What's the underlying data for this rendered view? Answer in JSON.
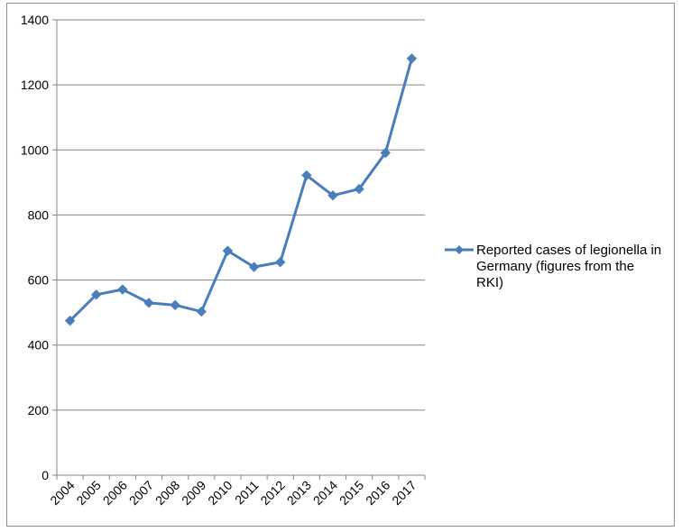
{
  "chart_data": {
    "type": "line",
    "title": "",
    "xlabel": "",
    "ylabel": "",
    "x": [
      "2004",
      "2005",
      "2006",
      "2007",
      "2008",
      "2009",
      "2010",
      "2011",
      "2012",
      "2013",
      "2014",
      "2015",
      "2016",
      "2017"
    ],
    "series": [
      {
        "name": "Reported cases of legionella in Germany (figures from the RKI)",
        "name_lines": [
          "Reported cases of legionella in",
          "Germany (figures from the",
          "RKI)"
        ],
        "values": [
          475,
          555,
          571,
          530,
          523,
          503,
          690,
          640,
          655,
          922,
          860,
          880,
          991,
          1281
        ],
        "color": "#4a7ebb",
        "marker": "diamond"
      }
    ],
    "ylim": [
      0,
      1400
    ],
    "yticks": [
      "0",
      "200",
      "400",
      "600",
      "800",
      "1000",
      "1200",
      "1400"
    ],
    "grid": "horizontal",
    "legend": "right"
  }
}
